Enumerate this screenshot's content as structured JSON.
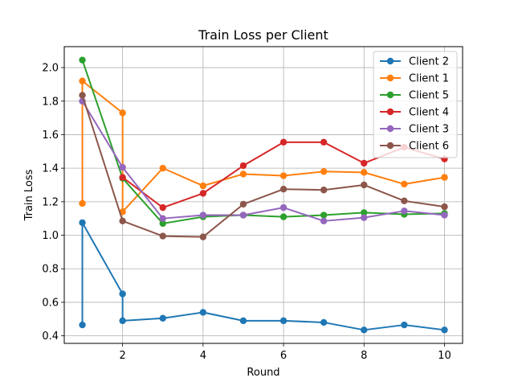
{
  "chart_data": {
    "type": "line",
    "title": "Train Loss per Client",
    "xlabel": "Round",
    "ylabel": "Train Loss",
    "xlim": [
      0.55,
      10.45
    ],
    "ylim": [
      0.355,
      2.125
    ],
    "xticks": [
      2,
      4,
      6,
      8,
      10
    ],
    "yticks": [
      0.4,
      0.6,
      0.8,
      1.0,
      1.2,
      1.4,
      1.6,
      1.8,
      2.0
    ],
    "ytick_labels": [
      "0.4",
      "0.6",
      "0.8",
      "1.0",
      "1.2",
      "1.4",
      "1.6",
      "1.8",
      "2.0"
    ],
    "grid": true,
    "legend_position": "top-right",
    "series": [
      {
        "name": "Client 2",
        "color": "#1f77b4",
        "x": [
          1,
          1,
          2,
          2,
          3,
          4,
          5,
          6,
          7,
          8,
          9,
          10
        ],
        "y": [
          0.465,
          1.075,
          0.65,
          0.49,
          0.505,
          0.54,
          0.49,
          0.49,
          0.48,
          0.435,
          0.465,
          0.435
        ]
      },
      {
        "name": "Client 1",
        "color": "#ff7f0e",
        "x": [
          1,
          1,
          2,
          2,
          3,
          4,
          5,
          6,
          7,
          8,
          9,
          10
        ],
        "y": [
          1.19,
          1.92,
          1.73,
          1.14,
          1.4,
          1.295,
          1.365,
          1.355,
          1.38,
          1.375,
          1.305,
          1.345
        ]
      },
      {
        "name": "Client 5",
        "color": "#2ca02c",
        "x": [
          1,
          2,
          3,
          4,
          5,
          6,
          7,
          8,
          9,
          10
        ],
        "y": [
          2.045,
          1.34,
          1.07,
          1.11,
          1.12,
          1.11,
          1.12,
          1.135,
          1.125,
          1.13
        ]
      },
      {
        "name": "Client 4",
        "color": "#d62728",
        "x": [
          2,
          3,
          4,
          5,
          6,
          7,
          8,
          9,
          10
        ],
        "y": [
          1.345,
          1.165,
          1.25,
          1.415,
          1.555,
          1.555,
          1.43,
          1.525,
          1.455
        ]
      },
      {
        "name": "Client 3",
        "color": "#9467bd",
        "x": [
          1,
          2,
          3,
          4,
          5,
          6,
          7,
          8,
          9,
          10
        ],
        "y": [
          1.8,
          1.405,
          1.1,
          1.12,
          1.12,
          1.165,
          1.085,
          1.105,
          1.145,
          1.12
        ]
      },
      {
        "name": "Client 6",
        "color": "#8c564b",
        "x": [
          1,
          2,
          3,
          4,
          5,
          6,
          7,
          8,
          9,
          10
        ],
        "y": [
          1.835,
          1.085,
          0.995,
          0.99,
          1.185,
          1.275,
          1.27,
          1.3,
          1.205,
          1.17
        ]
      }
    ]
  }
}
